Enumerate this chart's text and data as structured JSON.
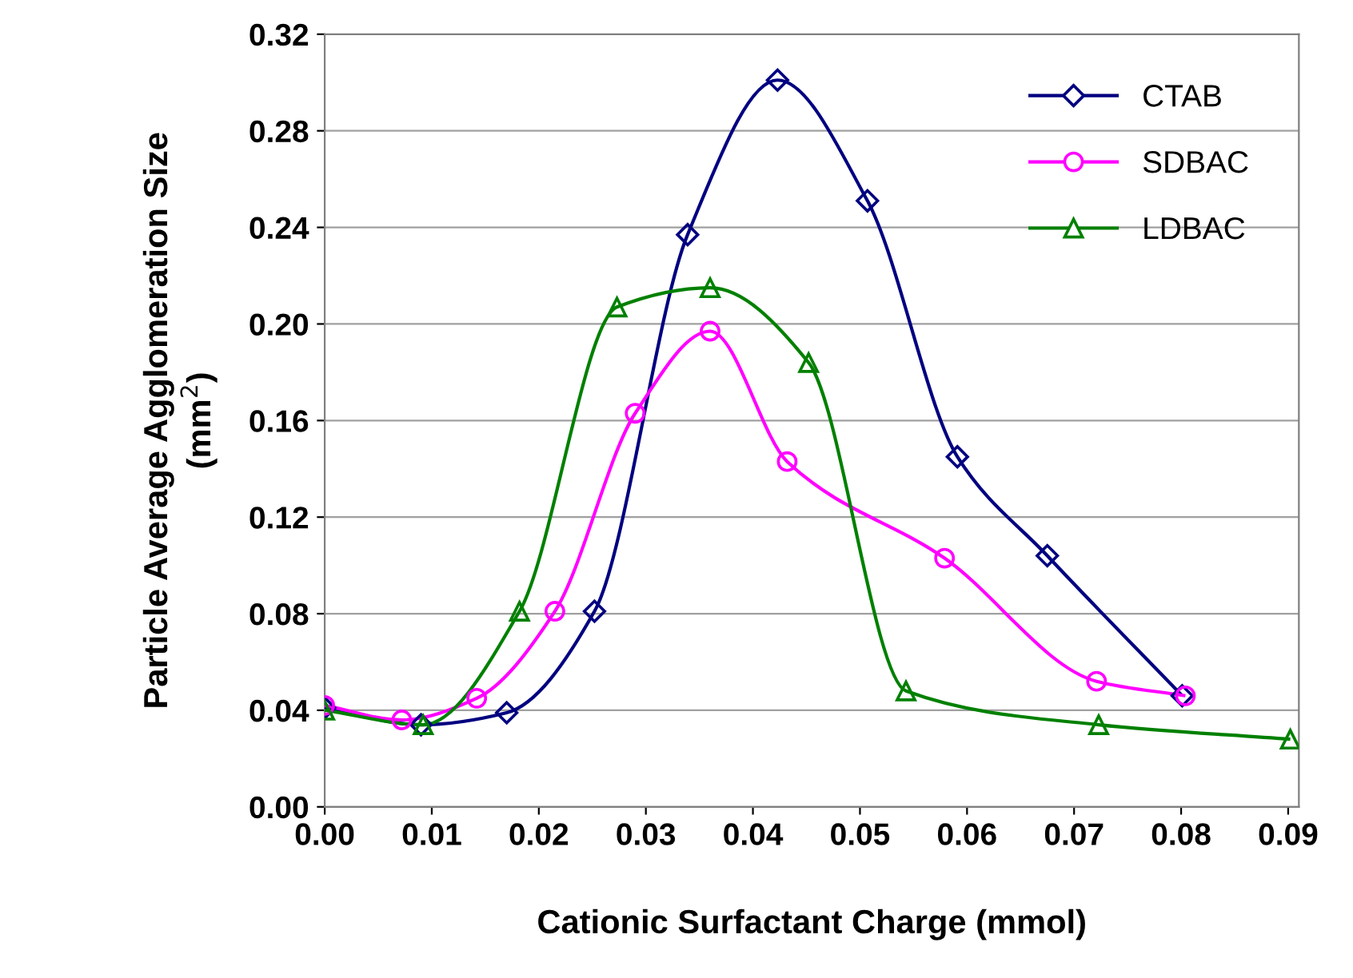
{
  "chart_data": {
    "type": "line",
    "xlabel": "Cationic Surfactant Charge (mmol)",
    "ylabel": "Particle Average Agglomeration Size\n(mm$^{2}$)",
    "xlim": [
      0,
      0.091
    ],
    "xticks": [
      {
        "value": 0,
        "label": "0.00"
      },
      {
        "value": 0.01,
        "label": "0.01"
      },
      {
        "value": 0.02,
        "label": "0.02"
      },
      {
        "value": 0.03,
        "label": "0.03"
      },
      {
        "value": 0.04,
        "label": "0.04"
      },
      {
        "value": 0.05,
        "label": "0.05"
      },
      {
        "value": 0.06,
        "label": "0.06"
      },
      {
        "value": 0.07,
        "label": "0.07"
      },
      {
        "value": 0.08,
        "label": "0.08"
      },
      {
        "value": 0.09,
        "label": "0.09"
      }
    ],
    "ylim": [
      0,
      0.32
    ],
    "yticks": [
      {
        "value": 0,
        "label": "0.00"
      },
      {
        "value": 0.04,
        "label": "0.04"
      },
      {
        "value": 0.08,
        "label": "0.08"
      },
      {
        "value": 0.12,
        "label": "0.12"
      },
      {
        "value": 0.16,
        "label": "0.16"
      },
      {
        "value": 0.2,
        "label": "0.20"
      },
      {
        "value": 0.24,
        "label": "0.24"
      },
      {
        "value": 0.28,
        "label": "0.28"
      },
      {
        "value": 0.32,
        "label": "0.32"
      }
    ],
    "grid": "y",
    "legend": "top right",
    "series": [
      {
        "name": "CTAB",
        "color": "#000080",
        "marker": "diamond",
        "x": [
          0,
          0.009,
          0.017,
          0.0252,
          0.0339,
          0.0423,
          0.0507,
          0.0591,
          0.0675,
          0.0801
        ],
        "values": [
          0.041,
          0.034,
          0.039,
          0.081,
          0.237,
          0.301,
          0.251,
          0.145,
          0.104,
          0.046
        ]
      },
      {
        "name": "SDBAC",
        "color": "#ff00ff",
        "marker": "circle",
        "x": [
          0,
          0.0072,
          0.0142,
          0.0215,
          0.029,
          0.036,
          0.0432,
          0.0579,
          0.0721,
          0.0804
        ],
        "values": [
          0.042,
          0.036,
          0.045,
          0.081,
          0.163,
          0.197,
          0.143,
          0.103,
          0.052,
          0.046
        ]
      },
      {
        "name": "LDBAC",
        "color": "#008000",
        "marker": "triangle",
        "x": [
          0,
          0.0092,
          0.0182,
          0.0273,
          0.036,
          0.0452,
          0.0543,
          0.0723,
          0.0902
        ],
        "values": [
          0.04,
          0.034,
          0.081,
          0.207,
          0.215,
          0.184,
          0.048,
          0.034,
          0.028
        ]
      }
    ]
  }
}
